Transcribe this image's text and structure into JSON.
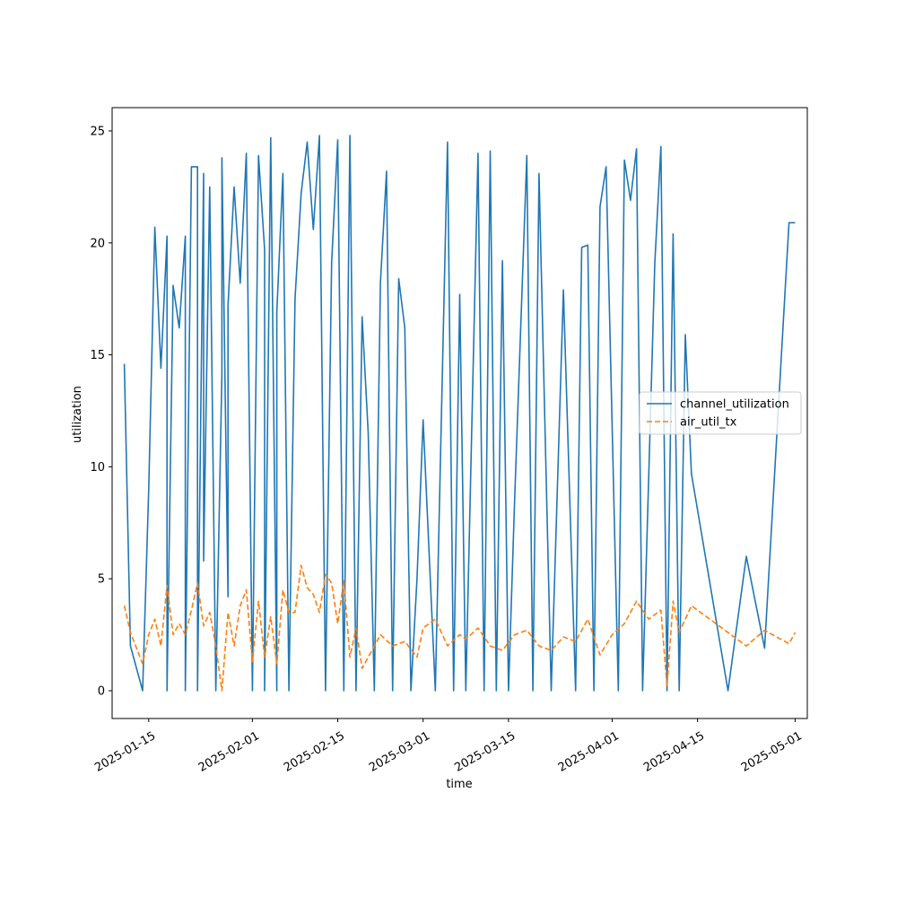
{
  "chart_data": {
    "type": "line",
    "xlabel": "time",
    "ylabel": "utilization",
    "x_is_date": true,
    "xlim": [
      "2025-01-09",
      "2025-05-03"
    ],
    "ylim": [
      -1.24,
      26.04
    ],
    "x_ticks": [
      {
        "date": "2025-01-15",
        "label": "2025-01-15"
      },
      {
        "date": "2025-02-01",
        "label": "2025-02-01"
      },
      {
        "date": "2025-02-15",
        "label": "2025-02-15"
      },
      {
        "date": "2025-03-01",
        "label": "2025-03-01"
      },
      {
        "date": "2025-03-15",
        "label": "2025-03-15"
      },
      {
        "date": "2025-04-01",
        "label": "2025-04-01"
      },
      {
        "date": "2025-04-15",
        "label": "2025-04-15"
      },
      {
        "date": "2025-05-01",
        "label": "2025-05-01"
      }
    ],
    "y_ticks": [
      {
        "value": 0,
        "label": "0"
      },
      {
        "value": 5,
        "label": "5"
      },
      {
        "value": 10,
        "label": "10"
      },
      {
        "value": 15,
        "label": "15"
      },
      {
        "value": 20,
        "label": "20"
      },
      {
        "value": 25,
        "label": "25"
      }
    ],
    "grid": false,
    "legend_position": "center-right",
    "series": [
      {
        "name": "channel_utilization",
        "color": "#1f77b4",
        "dash": "solid",
        "x": [
          "2025-01-11",
          "2025-01-12",
          "2025-01-14",
          "2025-01-15",
          "2025-01-16",
          "2025-01-17",
          "2025-01-18",
          "2025-01-18",
          "2025-01-19",
          "2025-01-20",
          "2025-01-21",
          "2025-01-21",
          "2025-01-22",
          "2025-01-23",
          "2025-01-23",
          "2025-01-24",
          "2025-01-24",
          "2025-01-25",
          "2025-01-26",
          "2025-01-27",
          "2025-01-27",
          "2025-01-28",
          "2025-01-28",
          "2025-01-29",
          "2025-01-30",
          "2025-01-31",
          "2025-02-01",
          "2025-02-02",
          "2025-02-03",
          "2025-02-03",
          "2025-02-04",
          "2025-02-05",
          "2025-02-05",
          "2025-02-06",
          "2025-02-07",
          "2025-02-08",
          "2025-02-09",
          "2025-02-10",
          "2025-02-11",
          "2025-02-12",
          "2025-02-13",
          "2025-02-14",
          "2025-02-15",
          "2025-02-16",
          "2025-02-17",
          "2025-02-18",
          "2025-02-19",
          "2025-02-20",
          "2025-02-21",
          "2025-02-22",
          "2025-02-23",
          "2025-02-24",
          "2025-02-25",
          "2025-02-26",
          "2025-02-27",
          "2025-02-28",
          "2025-03-01",
          "2025-03-03",
          "2025-03-05",
          "2025-03-06",
          "2025-03-07",
          "2025-03-08",
          "2025-03-10",
          "2025-03-11",
          "2025-03-12",
          "2025-03-13",
          "2025-03-14",
          "2025-03-15",
          "2025-03-16",
          "2025-03-18",
          "2025-03-19",
          "2025-03-20",
          "2025-03-22",
          "2025-03-24",
          "2025-03-26",
          "2025-03-27",
          "2025-03-28",
          "2025-03-29",
          "2025-03-30",
          "2025-03-31",
          "2025-04-02",
          "2025-04-03",
          "2025-04-04",
          "2025-04-05",
          "2025-04-06",
          "2025-04-08",
          "2025-04-09",
          "2025-04-10",
          "2025-04-11",
          "2025-04-12",
          "2025-04-13",
          "2025-04-14",
          "2025-04-20",
          "2025-04-23",
          "2025-04-26",
          "2025-04-30",
          "2025-05-01"
        ],
        "y": [
          14.6,
          2.0,
          0.0,
          9.0,
          20.7,
          14.4,
          20.3,
          0.0,
          18.1,
          16.2,
          20.3,
          0.0,
          23.4,
          23.4,
          0.0,
          23.1,
          5.8,
          22.5,
          0.0,
          14.2,
          23.8,
          4.2,
          17.2,
          22.5,
          18.2,
          24.0,
          0.0,
          23.9,
          19.7,
          0.0,
          24.7,
          0.0,
          16.9,
          23.1,
          0.0,
          17.5,
          22.2,
          24.5,
          20.6,
          24.8,
          0.0,
          19.1,
          24.6,
          0.0,
          24.8,
          0.0,
          16.7,
          11.5,
          0.0,
          18.2,
          23.2,
          0.0,
          18.4,
          16.2,
          0.0,
          5.0,
          12.1,
          0.0,
          24.5,
          0.0,
          17.7,
          0.0,
          24.0,
          0.0,
          24.1,
          0.0,
          19.2,
          0.0,
          8.5,
          23.9,
          0.0,
          23.1,
          0.0,
          17.9,
          0.0,
          19.8,
          19.9,
          0.0,
          21.6,
          23.4,
          0.0,
          23.7,
          21.9,
          24.2,
          0.0,
          19.1,
          24.3,
          0.0,
          20.4,
          0.0,
          15.9,
          9.7,
          0.0,
          6.0,
          1.9,
          20.9,
          20.9
        ]
      },
      {
        "name": "air_util_tx",
        "color": "#ff7f0e",
        "dash": "dashed",
        "x": [
          "2025-01-11",
          "2025-01-12",
          "2025-01-14",
          "2025-01-15",
          "2025-01-16",
          "2025-01-17",
          "2025-01-18",
          "2025-01-19",
          "2025-01-20",
          "2025-01-21",
          "2025-01-22",
          "2025-01-23",
          "2025-01-24",
          "2025-01-25",
          "2025-01-26",
          "2025-01-27",
          "2025-01-28",
          "2025-01-29",
          "2025-01-30",
          "2025-01-31",
          "2025-02-01",
          "2025-02-02",
          "2025-02-03",
          "2025-02-04",
          "2025-02-05",
          "2025-02-06",
          "2025-02-07",
          "2025-02-08",
          "2025-02-09",
          "2025-02-10",
          "2025-02-11",
          "2025-02-12",
          "2025-02-13",
          "2025-02-14",
          "2025-02-15",
          "2025-02-16",
          "2025-02-17",
          "2025-02-18",
          "2025-02-19",
          "2025-02-20",
          "2025-02-22",
          "2025-02-24",
          "2025-02-26",
          "2025-02-28",
          "2025-03-01",
          "2025-03-03",
          "2025-03-05",
          "2025-03-07",
          "2025-03-08",
          "2025-03-10",
          "2025-03-12",
          "2025-03-14",
          "2025-03-16",
          "2025-03-18",
          "2025-03-20",
          "2025-03-22",
          "2025-03-24",
          "2025-03-26",
          "2025-03-28",
          "2025-03-30",
          "2025-04-01",
          "2025-04-03",
          "2025-04-05",
          "2025-04-07",
          "2025-04-09",
          "2025-04-10",
          "2025-04-11",
          "2025-04-12",
          "2025-04-14",
          "2025-04-23",
          "2025-04-26",
          "2025-04-30",
          "2025-05-01"
        ],
        "y": [
          3.8,
          2.6,
          1.2,
          2.5,
          3.2,
          2.0,
          4.7,
          2.5,
          3.0,
          2.5,
          3.6,
          4.8,
          2.9,
          3.5,
          2.0,
          0.0,
          3.5,
          2.0,
          3.8,
          4.5,
          1.3,
          4.0,
          1.5,
          3.3,
          1.2,
          4.5,
          3.5,
          3.5,
          5.6,
          4.6,
          4.3,
          3.5,
          5.2,
          4.8,
          3.0,
          4.9,
          1.5,
          2.8,
          1.0,
          1.5,
          2.5,
          2.0,
          2.2,
          1.5,
          2.8,
          3.2,
          2.0,
          2.5,
          2.3,
          2.8,
          2.0,
          1.8,
          2.5,
          2.7,
          2.0,
          1.8,
          2.4,
          2.2,
          3.2,
          1.6,
          2.5,
          3.0,
          4.0,
          3.2,
          3.6,
          0.2,
          4.0,
          2.6,
          3.8,
          2.0,
          2.7,
          2.1,
          2.6
        ]
      }
    ]
  }
}
